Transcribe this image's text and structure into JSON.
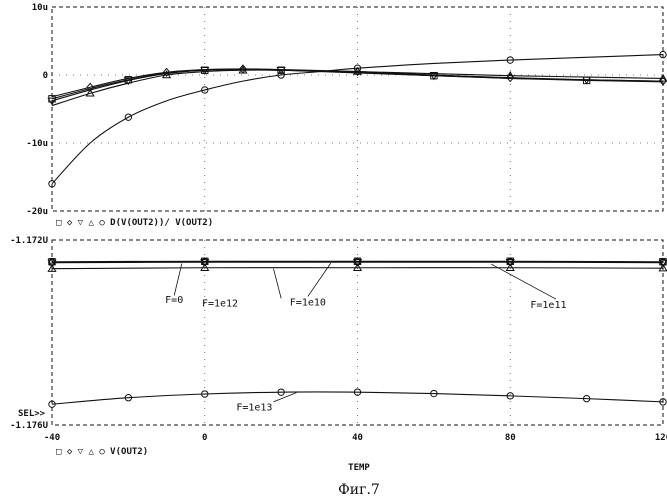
{
  "caption": "Фиг.7",
  "x_axis_label": "TEMP",
  "chart_data": [
    {
      "type": "line",
      "legend_text": "□ ◇ ▽ △ ○ D(V(OUT2))/ V(OUT2)",
      "xlim": [
        -40,
        120
      ],
      "ylim": [
        -20,
        10
      ],
      "yticks": [
        {
          "v": 10,
          "t": "10u"
        },
        {
          "v": 0,
          "t": "0"
        },
        {
          "v": -10,
          "t": "-10u"
        },
        {
          "v": -20,
          "t": "-20u"
        }
      ],
      "xticks": [
        -40,
        0,
        40,
        80,
        120
      ],
      "grid": true,
      "series": [
        {
          "marker": "square",
          "x": [
            -40,
            -30,
            -20,
            -10,
            0,
            10,
            20,
            40,
            60,
            80,
            100,
            120
          ],
          "y": [
            -3.5,
            -2.0,
            -0.7,
            0.3,
            0.7,
            0.8,
            0.7,
            0.4,
            -0.1,
            -0.5,
            -0.8,
            -1.0
          ]
        },
        {
          "marker": "diamond",
          "x": [
            -40,
            -30,
            -20,
            -10,
            0,
            10,
            20,
            40,
            60,
            80,
            100,
            120
          ],
          "y": [
            -3.2,
            -1.8,
            -0.5,
            0.4,
            0.8,
            0.9,
            0.8,
            0.5,
            0.0,
            -0.4,
            -0.7,
            -0.9
          ]
        },
        {
          "marker": "triangle-down",
          "x": [
            -40,
            -30,
            -20,
            -10,
            0,
            10,
            20,
            40,
            60,
            80,
            100,
            120
          ],
          "y": [
            -3.8,
            -2.2,
            -0.8,
            0.2,
            0.7,
            0.8,
            0.7,
            0.3,
            -0.1,
            -0.5,
            -0.7,
            -0.9
          ]
        },
        {
          "marker": "triangle-up",
          "x": [
            -40,
            -30,
            -20,
            -10,
            0,
            10,
            20,
            40,
            60,
            80,
            100,
            120
          ],
          "y": [
            -4.5,
            -2.7,
            -1.2,
            0.0,
            0.5,
            0.7,
            0.7,
            0.5,
            0.2,
            -0.1,
            -0.3,
            -0.5
          ]
        },
        {
          "marker": "circle",
          "x": [
            -40,
            -30,
            -20,
            -10,
            0,
            10,
            20,
            30,
            40,
            60,
            80,
            100,
            120
          ],
          "y": [
            -16.0,
            -10.0,
            -6.2,
            -3.8,
            -2.2,
            -0.9,
            0.0,
            0.5,
            1.0,
            1.7,
            2.2,
            2.6,
            3.0
          ]
        }
      ]
    },
    {
      "type": "line",
      "legend_text": "□ ◇ ▽ △ ○ V(OUT2)",
      "sel_label": "SEL>>",
      "xlim": [
        -40,
        120
      ],
      "ylim": [
        -1.176,
        -1.172
      ],
      "yticks": [
        {
          "v": -1.172,
          "t": "-1.172U"
        },
        {
          "v": -1.176,
          "t": "-1.176U"
        }
      ],
      "xticks": [
        -40,
        0,
        40,
        80,
        120
      ],
      "grid": true,
      "annotations": [
        {
          "text": "F=0",
          "x": -8,
          "y": -1.17328
        },
        {
          "text": "F=1e12",
          "x": 4,
          "y": -1.17335
        },
        {
          "text": "F=1e10",
          "x": 27,
          "y": -1.17333
        },
        {
          "text": "F=1e11",
          "x": 90,
          "y": -1.17338
        },
        {
          "text": "F=1e13",
          "x": 13,
          "y": -1.1756
        }
      ],
      "series": [
        {
          "name": "F=0",
          "marker": "square",
          "x": [
            -40,
            0,
            40,
            80,
            120
          ],
          "y": [
            -1.17247,
            -1.17246,
            -1.17246,
            -1.17246,
            -1.17247
          ]
        },
        {
          "name": "F=1e12",
          "marker": "diamond",
          "x": [
            -40,
            0,
            40,
            80,
            120
          ],
          "y": [
            -1.17248,
            -1.17247,
            -1.17247,
            -1.17247,
            -1.17248
          ]
        },
        {
          "name": "F=1e11",
          "marker": "triangle-down",
          "x": [
            -40,
            0,
            40,
            80,
            120
          ],
          "y": [
            -1.17249,
            -1.17248,
            -1.17248,
            -1.17248,
            -1.17249
          ]
        },
        {
          "name": "F=1e12",
          "marker": "triangle-up",
          "x": [
            -40,
            0,
            40,
            80,
            120
          ],
          "y": [
            -1.17262,
            -1.1726,
            -1.1726,
            -1.1726,
            -1.17261
          ]
        },
        {
          "name": "F=1e10",
          "marker": "circle",
          "x": [
            -40,
            0,
            40,
            80,
            120
          ],
          "y": [
            -1.17248,
            -1.17247,
            -1.17247,
            -1.17247,
            -1.17248
          ]
        },
        {
          "name": "F=1e13",
          "marker": "circle",
          "x": [
            -40,
            -20,
            0,
            20,
            40,
            60,
            80,
            100,
            120
          ],
          "y": [
            -1.17555,
            -1.17541,
            -1.17533,
            -1.17529,
            -1.17529,
            -1.17532,
            -1.17537,
            -1.17543,
            -1.1755
          ]
        }
      ]
    }
  ]
}
